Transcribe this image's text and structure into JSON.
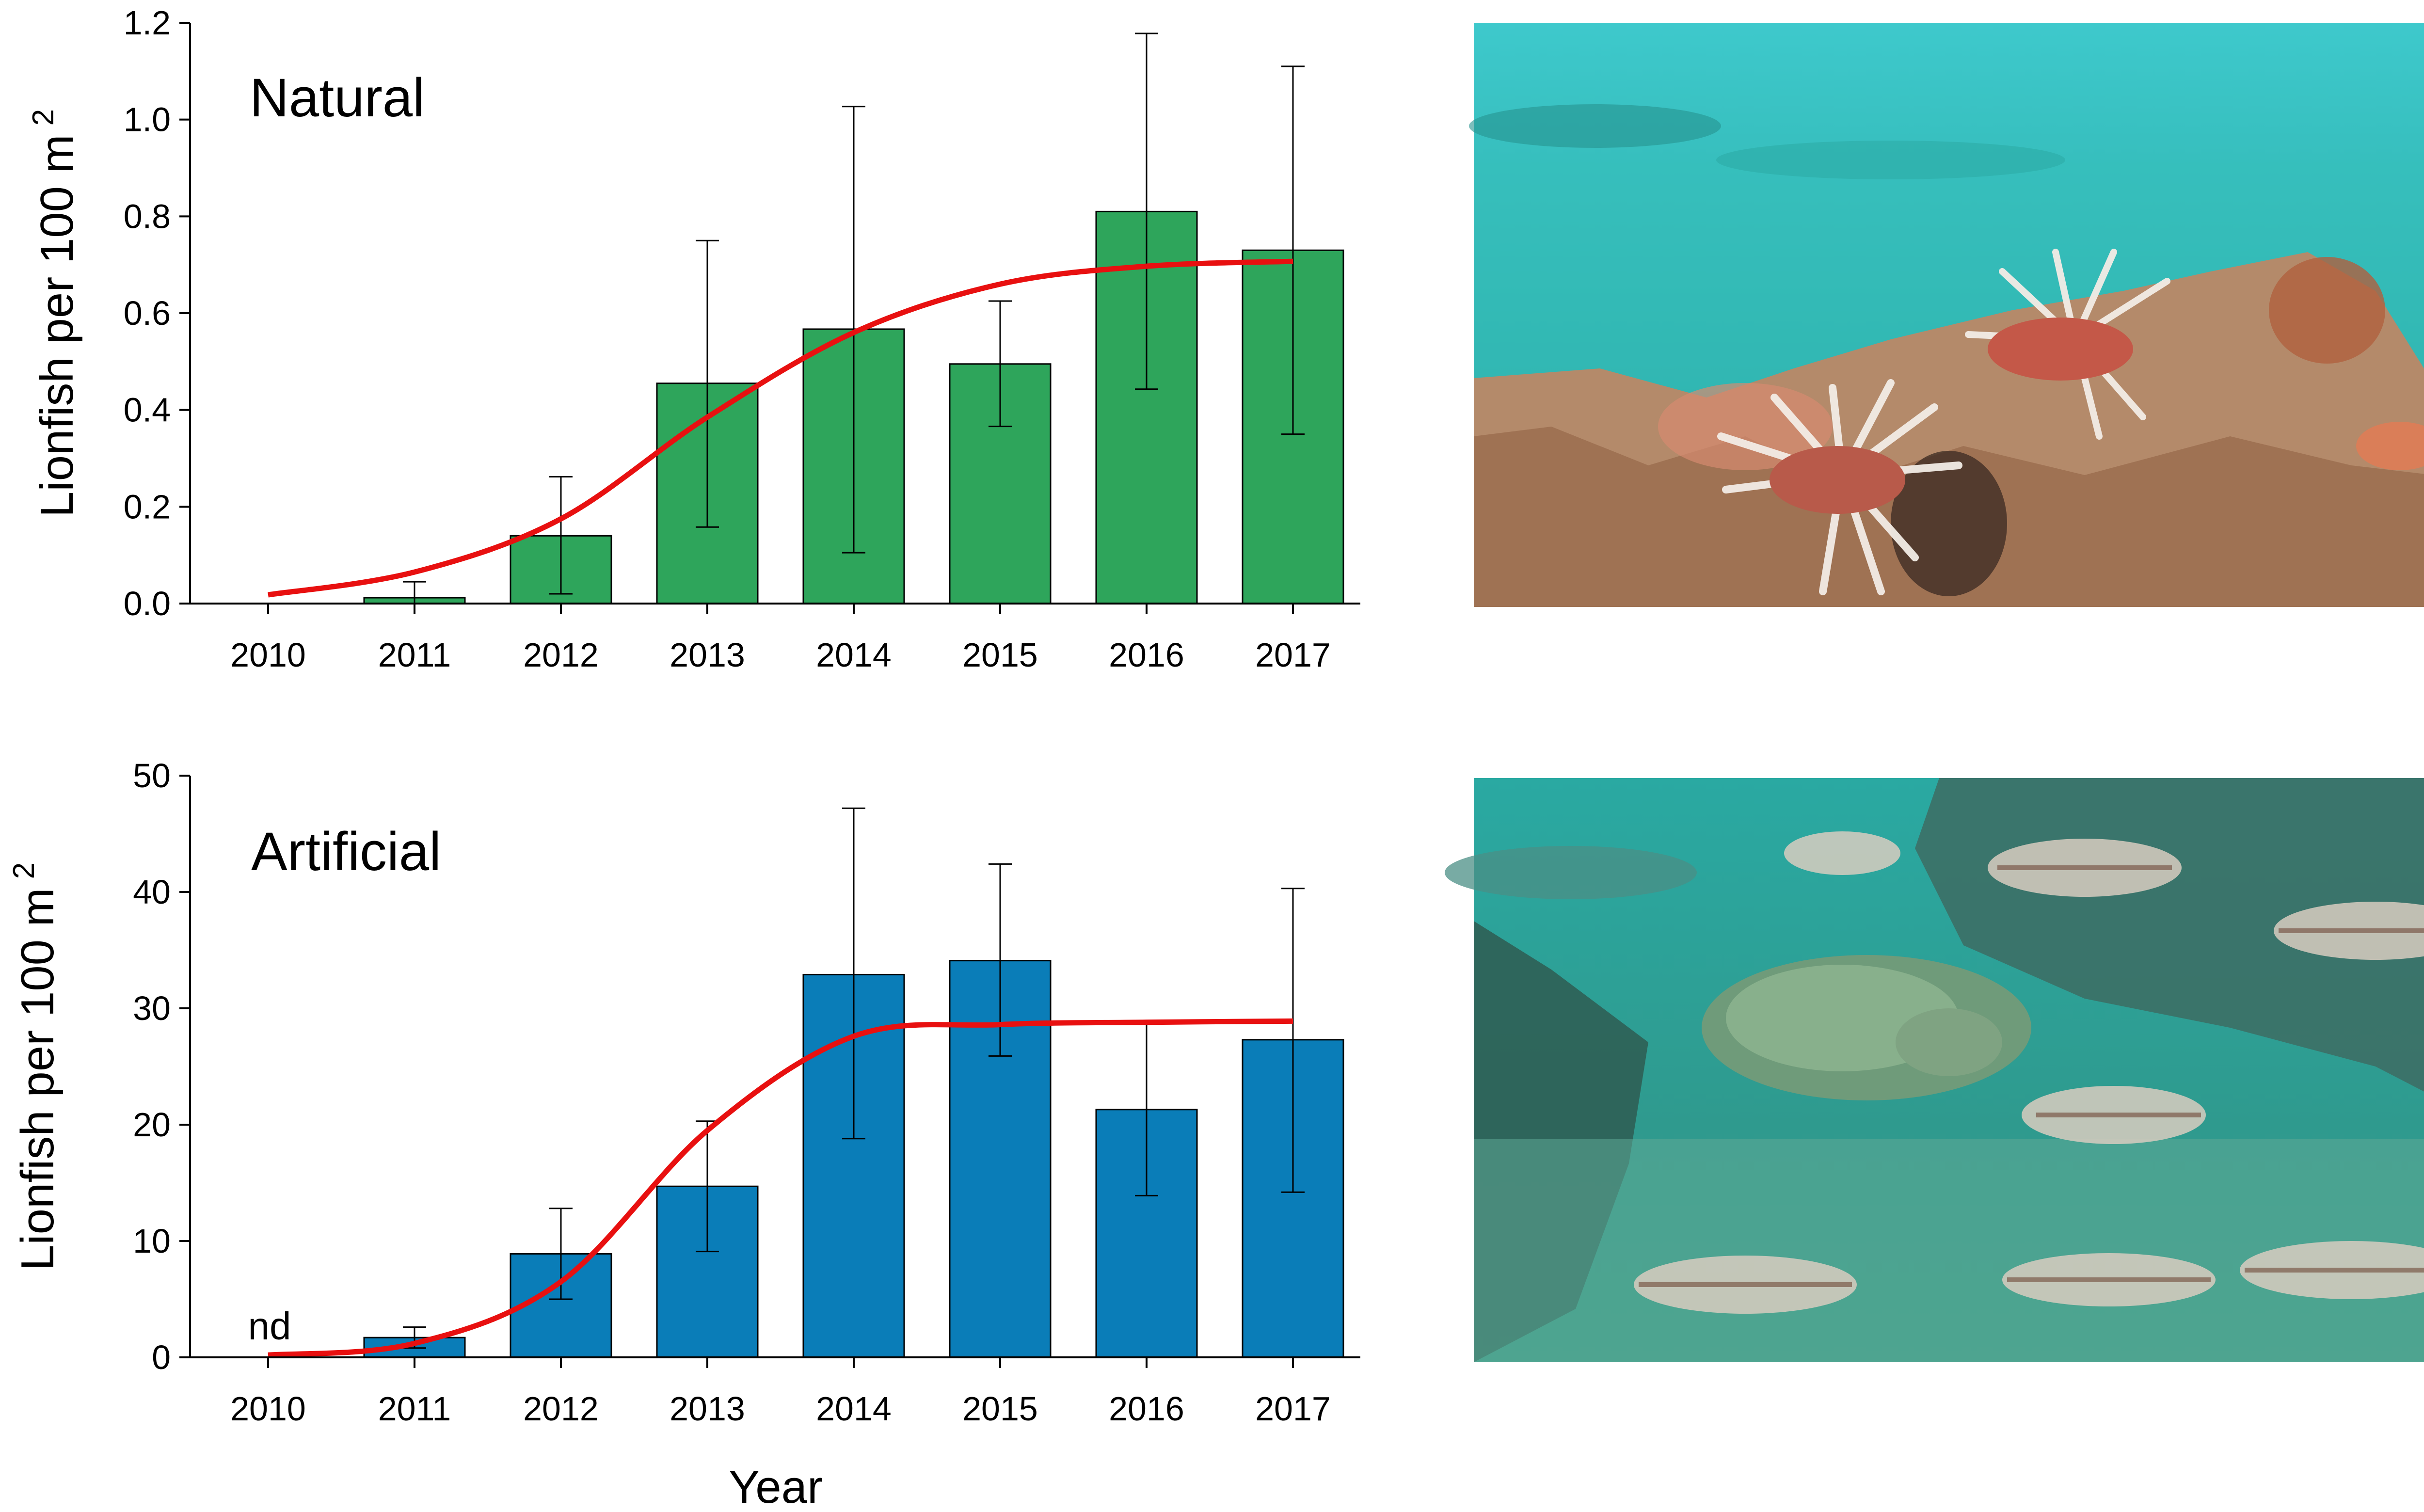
{
  "chart_data": [
    {
      "type": "bar",
      "title": "Natural",
      "xlabel": "",
      "ylabel_main": "Lionfish per 100 m",
      "ylabel_sup": "2",
      "categories": [
        "2010",
        "2011",
        "2012",
        "2013",
        "2014",
        "2015",
        "2016",
        "2017"
      ],
      "values": [
        0.0,
        0.012,
        0.14,
        0.455,
        0.567,
        0.495,
        0.81,
        0.73
      ],
      "error_upper": [
        null,
        0.045,
        0.262,
        0.75,
        1.027,
        0.625,
        1.178,
        1.11
      ],
      "error_lower": [
        null,
        0.0,
        0.02,
        0.158,
        0.105,
        0.366,
        0.443,
        0.35
      ],
      "curve": [
        0.018,
        0.065,
        0.175,
        0.385,
        0.56,
        0.66,
        0.697,
        0.707
      ],
      "ylim": [
        0,
        1.2
      ],
      "yticks": [
        "0.0",
        "0.2",
        "0.4",
        "0.6",
        "0.8",
        "1.0",
        "1.2"
      ],
      "bar_color": "#2ea55b",
      "curve_color": "#e81010"
    },
    {
      "type": "bar",
      "title": "Artificial",
      "xlabel": "Year",
      "ylabel_main": "Lionfish per 100 m",
      "ylabel_sup": "2",
      "categories": [
        "2010",
        "2011",
        "2012",
        "2013",
        "2014",
        "2015",
        "2016",
        "2017"
      ],
      "values": [
        0,
        1.7,
        8.9,
        14.7,
        32.9,
        34.1,
        21.3,
        27.3
      ],
      "error_upper": [
        null,
        2.6,
        12.8,
        20.3,
        47.2,
        42.4,
        28.7,
        40.3
      ],
      "error_lower": [
        null,
        0.8,
        5.0,
        9.1,
        18.8,
        25.9,
        13.9,
        14.2
      ],
      "curve": [
        0.2,
        1.2,
        6.5,
        19.5,
        27.6,
        28.6,
        28.8,
        28.9
      ],
      "annotation": "nd",
      "ylim": [
        0,
        50
      ],
      "yticks": [
        "0",
        "10",
        "20",
        "30",
        "40",
        "50"
      ],
      "bar_color": "#0a7db8",
      "curve_color": "#e81010"
    }
  ],
  "photos": [
    {
      "name": "natural-reef-photo",
      "water_color": "#2fb7b4",
      "rock_color": "#b48a6a"
    },
    {
      "name": "artificial-reef-photo",
      "water_color": "#2c9d92",
      "rock_color": "#4d7a70"
    }
  ]
}
